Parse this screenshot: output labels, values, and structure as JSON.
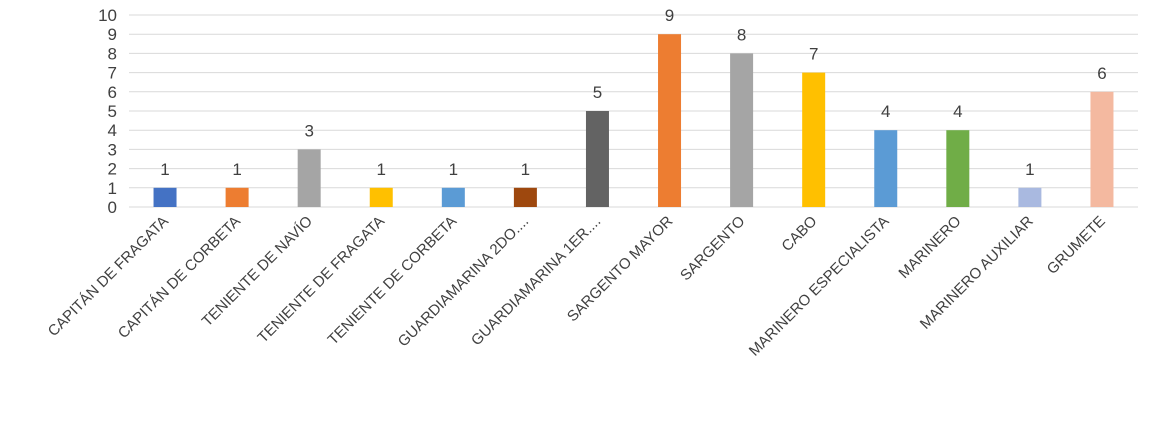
{
  "chart_data": {
    "type": "bar",
    "categories": [
      "CAPITÁN DE FRAGATA",
      "CAPITÁN DE CORBETA",
      "TENIENTE DE NAVÍO",
      "TENIENTE DE FRAGATA",
      "TENIENTE DE CORBETA",
      "GUARDIAMARINA 2DO....",
      "GUARDIAMARINA 1ER....",
      "SARGENTO MAYOR",
      "SARGENTO",
      "CABO",
      "MARINERO ESPECIALISTA",
      "MARINERO",
      "MARINERO AUXILIAR",
      "GRUMETE"
    ],
    "values": [
      1,
      1,
      3,
      1,
      1,
      1,
      5,
      9,
      8,
      7,
      4,
      4,
      1,
      6
    ],
    "data_labels": [
      "1",
      "1",
      "3",
      "1",
      "1",
      "1",
      "5",
      "9",
      "8",
      "7",
      "4",
      "4",
      "1",
      "6"
    ],
    "colors": [
      "#4472c4",
      "#ed7d31",
      "#a5a5a5",
      "#ffc000",
      "#5b9bd5",
      "#9e480e",
      "#636363",
      "#ed7d31",
      "#a5a5a5",
      "#ffc000",
      "#5b9bd5",
      "#70ad47",
      "#a9b9e0",
      "#f4b9a0"
    ],
    "yticks": [
      "0",
      "1",
      "2",
      "3",
      "4",
      "5",
      "6",
      "7",
      "8",
      "9",
      "10"
    ],
    "ylim": [
      0,
      10
    ],
    "grid": true,
    "legend": "none"
  }
}
